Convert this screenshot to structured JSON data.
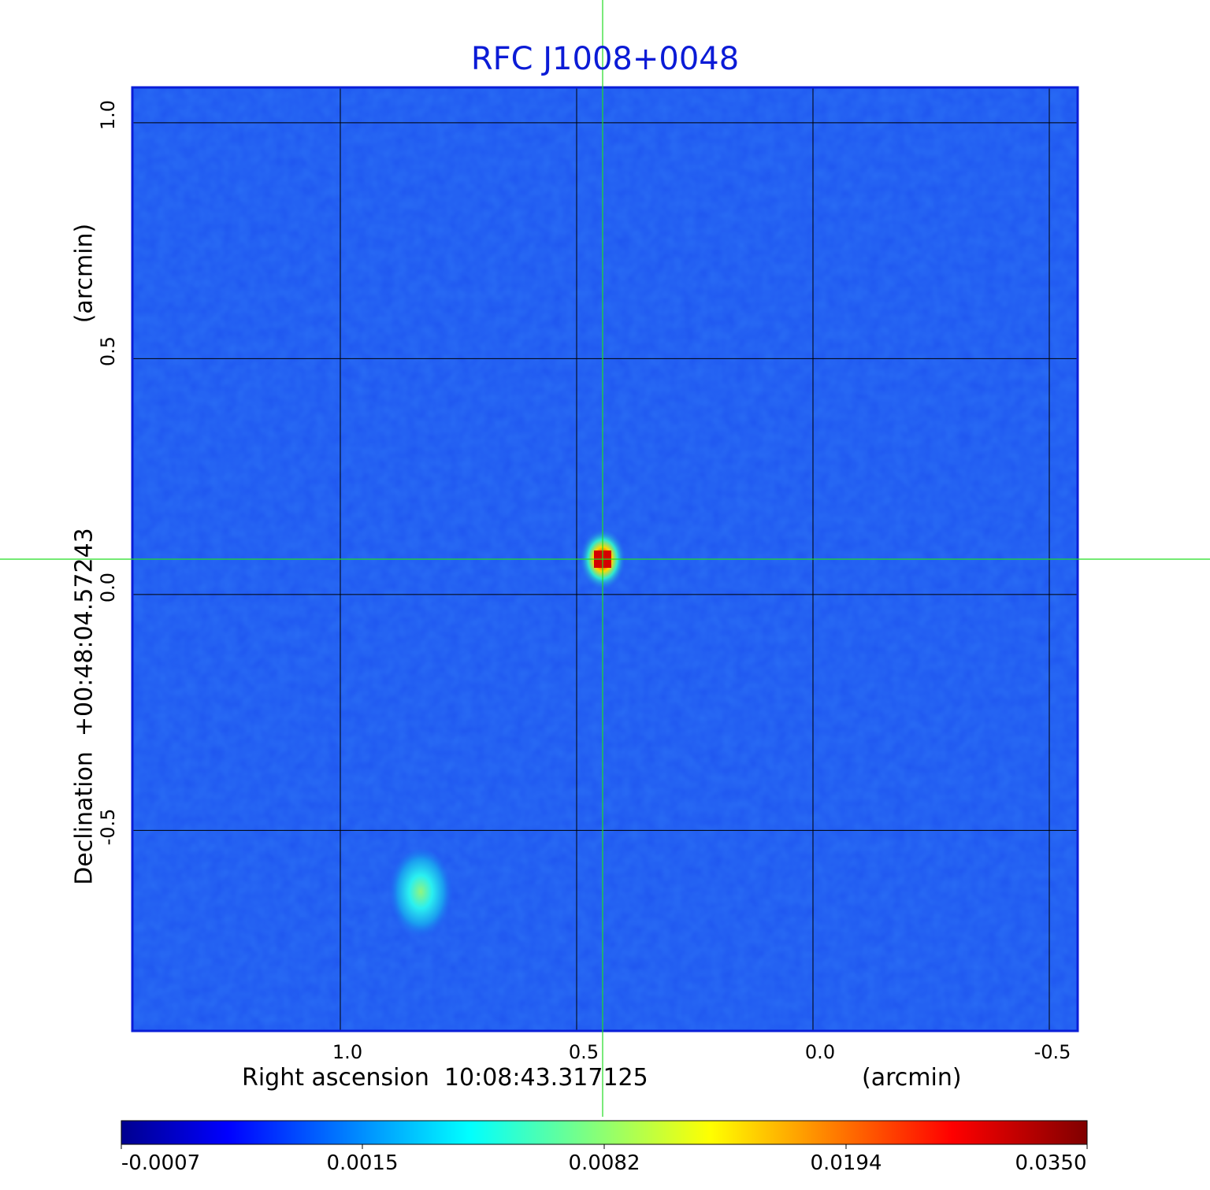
{
  "chart_data": {
    "type": "heatmap",
    "title": "RFC J1008+0048",
    "xlabel": "Right ascension  10:08:43.317125",
    "xunit": "(arcmin)",
    "ylabel": "Declination  +00:48:04.57243",
    "yunit": "(arcmin)",
    "x_ticks": [
      "1.0",
      "0.5",
      "0.0",
      "-0.5"
    ],
    "y_ticks": [
      "1.0",
      "0.5",
      "0.0",
      "-0.5"
    ],
    "xlim": [
      1.44,
      -0.56
    ],
    "ylim": [
      -0.925,
      1.075
    ],
    "grid": true,
    "colormap": "jet",
    "colorbar_ticks": [
      "-0.0007",
      "0.0015",
      "0.0082",
      "0.0194",
      "0.0350"
    ],
    "colorbar_range": [
      -0.0007,
      0.035
    ],
    "sources": [
      {
        "x": 0.445,
        "y": 0.075,
        "peak": 0.035
      },
      {
        "x": 0.83,
        "y": -0.64,
        "peak": 0.0075
      }
    ],
    "crosshair": {
      "x": 0.445,
      "y": 0.075,
      "color": "#22dd22"
    },
    "colors": {
      "title": "#0b1bd6",
      "frame": "#0a1ed8",
      "background_level": "#1f56f0"
    }
  }
}
